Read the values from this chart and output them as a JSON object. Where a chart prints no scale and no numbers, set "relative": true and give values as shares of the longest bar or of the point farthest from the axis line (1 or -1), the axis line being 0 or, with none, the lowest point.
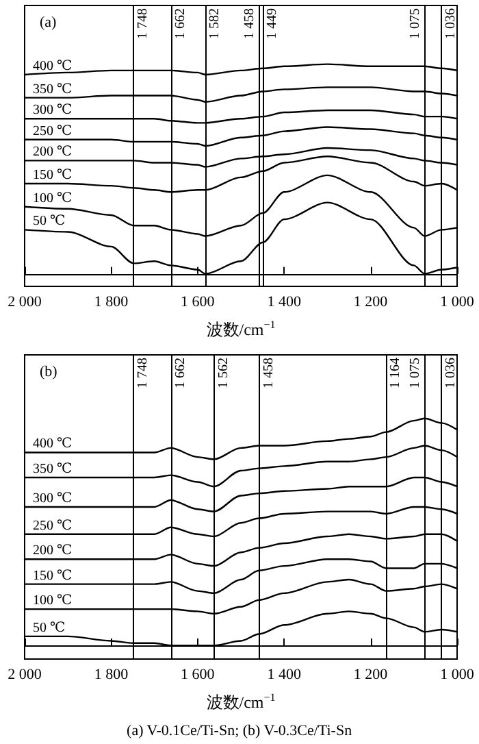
{
  "chart_data": [
    {
      "type": "line",
      "title": "(a)",
      "xlabel": "波数/cm$^{−1}$",
      "relative": true,
      "legend": false,
      "tick_labels": "x",
      "xlim": [
        2000,
        1000
      ],
      "xticks": [
        {
          "value": 2000,
          "label": "2 000"
        },
        {
          "value": 1800,
          "label": "1 800"
        },
        {
          "value": 1600,
          "label": "1 600"
        },
        {
          "value": 1400,
          "label": "1 400"
        },
        {
          "value": 1200,
          "label": "1 200"
        },
        {
          "value": 1000,
          "label": "1 000"
        }
      ],
      "x": [
        2000,
        1900,
        1800,
        1748,
        1700,
        1662,
        1600,
        1582,
        1500,
        1449,
        1400,
        1300,
        1200,
        1100,
        1075,
        1036,
        1000
      ],
      "series": [
        {
          "name": "400 ℃",
          "color": "#000000",
          "values": [
            0.95,
            0.96,
            0.97,
            0.97,
            0.97,
            0.97,
            0.96,
            0.95,
            0.97,
            0.98,
            0.99,
            1.0,
            0.99,
            0.99,
            0.99,
            0.98,
            0.97
          ]
        },
        {
          "name": "350 ℃",
          "color": "#000000",
          "values": [
            0.84,
            0.84,
            0.85,
            0.85,
            0.85,
            0.85,
            0.83,
            0.82,
            0.85,
            0.87,
            0.88,
            0.89,
            0.89,
            0.87,
            0.87,
            0.86,
            0.85
          ]
        },
        {
          "name": "300 ℃",
          "color": "#000000",
          "values": [
            0.74,
            0.74,
            0.74,
            0.74,
            0.74,
            0.73,
            0.72,
            0.72,
            0.74,
            0.75,
            0.77,
            0.78,
            0.78,
            0.76,
            0.75,
            0.75,
            0.74
          ]
        },
        {
          "name": "250 ℃",
          "color": "#000000",
          "values": [
            0.64,
            0.64,
            0.64,
            0.63,
            0.63,
            0.63,
            0.62,
            0.61,
            0.65,
            0.66,
            0.68,
            0.7,
            0.69,
            0.67,
            0.66,
            0.65,
            0.64
          ]
        },
        {
          "name": "200 ℃",
          "color": "#000000",
          "values": [
            0.54,
            0.54,
            0.54,
            0.54,
            0.53,
            0.53,
            0.52,
            0.51,
            0.55,
            0.56,
            0.57,
            0.6,
            0.59,
            0.55,
            0.54,
            0.53,
            0.52
          ]
        },
        {
          "name": "150 ℃",
          "color": "#000000",
          "values": [
            0.43,
            0.43,
            0.42,
            0.41,
            0.4,
            0.39,
            0.4,
            0.4,
            0.46,
            0.49,
            0.53,
            0.56,
            0.53,
            0.44,
            0.42,
            0.43,
            0.4
          ]
        },
        {
          "name": "100 ℃",
          "color": "#000000",
          "values": [
            0.32,
            0.31,
            0.28,
            0.23,
            0.23,
            0.21,
            0.19,
            0.18,
            0.23,
            0.29,
            0.39,
            0.47,
            0.39,
            0.22,
            0.18,
            0.21,
            0.22
          ]
        },
        {
          "name": "50 ℃",
          "color": "#000000",
          "values": [
            0.21,
            0.2,
            0.13,
            0.05,
            0.06,
            0.04,
            0.02,
            0.0,
            0.06,
            0.15,
            0.26,
            0.34,
            0.26,
            0.04,
            0.0,
            0.02,
            0.03
          ]
        }
      ],
      "ref_lines": [
        {
          "axis": "x",
          "value": 1748,
          "label": "1 748",
          "color": "#000000"
        },
        {
          "axis": "x",
          "value": 1662,
          "label": "1 662",
          "color": "#000000"
        },
        {
          "axis": "x",
          "value": 1582,
          "label": "1 582",
          "color": "#000000"
        },
        {
          "axis": "x",
          "value": 1458,
          "label": "1 458",
          "color": "#000000"
        },
        {
          "axis": "x",
          "value": 1449,
          "label": "1 449",
          "color": "#000000"
        },
        {
          "axis": "x",
          "value": 1075,
          "label": "1 075",
          "color": "#000000"
        },
        {
          "axis": "x",
          "value": 1036,
          "label": "1 036",
          "color": "#000000"
        }
      ]
    },
    {
      "type": "line",
      "title": "(b)",
      "xlabel": "波数/cm$^{−1}$",
      "relative": true,
      "legend": false,
      "tick_labels": "x",
      "xlim": [
        2000,
        1000
      ],
      "xticks": [
        {
          "value": 2000,
          "label": "2 000"
        },
        {
          "value": 1800,
          "label": "1 800"
        },
        {
          "value": 1600,
          "label": "1 600"
        },
        {
          "value": 1400,
          "label": "1 400"
        },
        {
          "value": 1200,
          "label": "1 200"
        },
        {
          "value": 1000,
          "label": "1 000"
        }
      ],
      "x": [
        2000,
        1900,
        1800,
        1748,
        1700,
        1662,
        1600,
        1562,
        1500,
        1458,
        1400,
        1300,
        1250,
        1200,
        1164,
        1100,
        1075,
        1036,
        1000
      ],
      "series": [
        {
          "name": "400 ℃",
          "color": "#000000",
          "values": [
            0.85,
            0.85,
            0.85,
            0.85,
            0.85,
            0.87,
            0.83,
            0.82,
            0.87,
            0.88,
            0.88,
            0.9,
            0.91,
            0.92,
            0.94,
            0.99,
            1.0,
            0.98,
            0.95
          ]
        },
        {
          "name": "350 ℃",
          "color": "#000000",
          "values": [
            0.74,
            0.74,
            0.74,
            0.74,
            0.74,
            0.75,
            0.72,
            0.7,
            0.77,
            0.78,
            0.79,
            0.81,
            0.81,
            0.82,
            0.83,
            0.87,
            0.88,
            0.86,
            0.83
          ]
        },
        {
          "name": "300 ℃",
          "color": "#000000",
          "values": [
            0.61,
            0.61,
            0.61,
            0.61,
            0.61,
            0.64,
            0.6,
            0.59,
            0.66,
            0.67,
            0.68,
            0.69,
            0.7,
            0.7,
            0.7,
            0.74,
            0.74,
            0.72,
            0.7
          ]
        },
        {
          "name": "250 ℃",
          "color": "#000000",
          "values": [
            0.49,
            0.49,
            0.49,
            0.49,
            0.49,
            0.52,
            0.49,
            0.48,
            0.54,
            0.56,
            0.58,
            0.59,
            0.59,
            0.59,
            0.58,
            0.61,
            0.61,
            0.6,
            0.58
          ]
        },
        {
          "name": "200 ℃",
          "color": "#000000",
          "values": [
            0.38,
            0.38,
            0.38,
            0.38,
            0.38,
            0.4,
            0.36,
            0.35,
            0.41,
            0.43,
            0.45,
            0.48,
            0.49,
            0.48,
            0.47,
            0.48,
            0.49,
            0.49,
            0.46
          ]
        },
        {
          "name": "150 ℃",
          "color": "#000000",
          "values": [
            0.27,
            0.27,
            0.27,
            0.27,
            0.27,
            0.28,
            0.24,
            0.23,
            0.29,
            0.33,
            0.35,
            0.38,
            0.38,
            0.37,
            0.34,
            0.34,
            0.36,
            0.36,
            0.34
          ]
        },
        {
          "name": "100 ℃",
          "color": "#000000",
          "values": [
            0.16,
            0.16,
            0.16,
            0.16,
            0.16,
            0.16,
            0.15,
            0.14,
            0.17,
            0.2,
            0.23,
            0.28,
            0.29,
            0.27,
            0.24,
            0.25,
            0.26,
            0.27,
            0.25
          ]
        },
        {
          "name": "50 ℃",
          "color": "#000000",
          "values": [
            0.04,
            0.04,
            0.02,
            0.01,
            0.01,
            0.0,
            0.0,
            0.0,
            0.02,
            0.05,
            0.09,
            0.14,
            0.15,
            0.14,
            0.12,
            0.08,
            0.06,
            0.07,
            0.06
          ]
        }
      ],
      "ref_lines": [
        {
          "axis": "x",
          "value": 1748,
          "label": "1 748",
          "color": "#000000"
        },
        {
          "axis": "x",
          "value": 1662,
          "label": "1 662",
          "color": "#000000"
        },
        {
          "axis": "x",
          "value": 1562,
          "label": "1 562",
          "color": "#000000"
        },
        {
          "axis": "x",
          "value": 1458,
          "label": "1 458",
          "color": "#000000"
        },
        {
          "axis": "x",
          "value": 1164,
          "label": "1 164",
          "color": "#000000"
        },
        {
          "axis": "x",
          "value": 1075,
          "label": "1 075",
          "color": "#000000"
        },
        {
          "axis": "x",
          "value": 1036,
          "label": "1 036",
          "color": "#000000"
        }
      ],
      "annotations": [
        "(a) V-0.1Ce/Ti-Sn; (b) V-0.3Ce/Ti-Sn"
      ]
    }
  ]
}
